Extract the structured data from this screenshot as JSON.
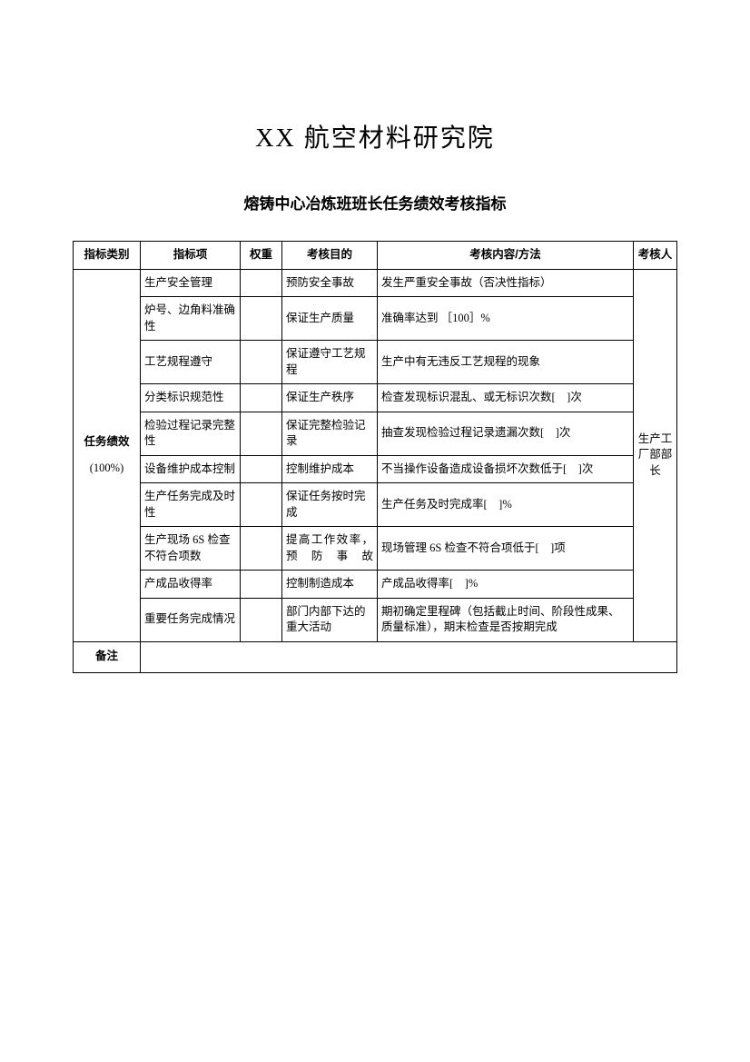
{
  "titles": {
    "main": "XX 航空材料研究院",
    "sub": "熔铸中心冶炼班班长任务绩效考核指标"
  },
  "headers": {
    "category": "指标类别",
    "item": "指标项",
    "weight": "权重",
    "purpose": "考核目的",
    "content": "考核内容/方法",
    "assessor": "考核人"
  },
  "category": {
    "label": "任务绩效",
    "pct": "(100%)"
  },
  "assessor": "生产工厂部部长",
  "rows": [
    {
      "item": "生产安全管理",
      "weight": "",
      "purpose": "预防安全事故",
      "content": "发生严重安全事故（否决性指标）"
    },
    {
      "item": "炉号、边角料准确性",
      "weight": "",
      "purpose": "保证生产质量",
      "content": "准确率达到 ［100］%"
    },
    {
      "item": "工艺规程遵守",
      "weight": "",
      "purpose": "保证遵守工艺规程",
      "content": "生产中有无违反工艺规程的现象"
    },
    {
      "item": "分类标识规范性",
      "weight": "",
      "purpose": "保证生产秩序",
      "content": "检查发现标识混乱、或无标识次数[　]次"
    },
    {
      "item": "检验过程记录完整性",
      "weight": "",
      "purpose": "保证完整检验记录",
      "content": "抽查发现检验过程记录遗漏次数[　]次"
    },
    {
      "item": "设备维护成本控制",
      "weight": "",
      "purpose": "控制维护成本",
      "content": "不当操作设备造成设备损坏次数低于[　]次"
    },
    {
      "item": "生产任务完成及时性",
      "weight": "",
      "purpose": "保证任务按时完成",
      "content": "生产任务及时完成率[　]%"
    },
    {
      "item": "生产现场 6S 检查不符合项数",
      "weight": "",
      "purpose": "提高工作效率，预防事故",
      "content": "现场管理 6S 检查不符合项低于[　]项"
    },
    {
      "item": "产成品收得率",
      "weight": "",
      "purpose": "控制制造成本",
      "content": "产成品收得率[　]%"
    },
    {
      "item": "重要任务完成情况",
      "weight": "",
      "purpose": "部门内部下达的重大活动",
      "content": "期初确定里程碑（包括截止时间、阶段性成果、质量标准），期末检查是否按期完成"
    }
  ],
  "remark": {
    "label": "备注",
    "content": ""
  }
}
